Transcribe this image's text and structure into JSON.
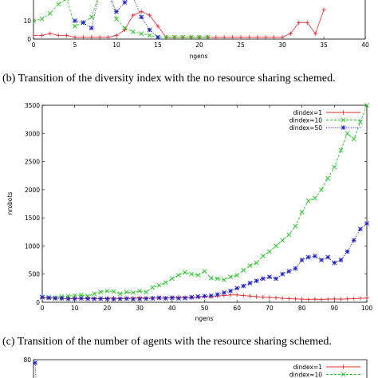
{
  "chart_data": [
    {
      "type": "line",
      "xlabel": "ngens",
      "ylabel": "",
      "xlim": [
        0,
        40
      ],
      "ylim": [
        0,
        30
      ],
      "x_ticks": [
        "0",
        "5",
        "10",
        "15",
        "20",
        "25",
        "30",
        "35",
        "40"
      ],
      "y_ticks": [
        "0",
        "10"
      ],
      "series": [
        {
          "name": "",
          "color": "#e03030",
          "marker": "plus",
          "x": [
            0,
            1,
            2,
            3,
            4,
            5,
            6,
            7,
            8,
            9,
            10,
            11,
            12,
            13,
            14,
            15,
            16,
            17,
            18,
            19,
            20,
            21,
            22,
            23,
            24,
            25,
            26,
            27,
            28,
            29,
            30,
            31,
            32,
            33,
            34,
            35
          ],
          "y": [
            2,
            2,
            3,
            2,
            2,
            1,
            1,
            1,
            1,
            1,
            2,
            5,
            13,
            15,
            13,
            7,
            1,
            1,
            1,
            1,
            1,
            1,
            1,
            1,
            1,
            1,
            1,
            1,
            1,
            1,
            1,
            3,
            9,
            9,
            3,
            16
          ]
        },
        {
          "name": "",
          "color": "#22c322",
          "marker": "x",
          "x": [
            0,
            1,
            2,
            3,
            4,
            5,
            6,
            7,
            8,
            9,
            10,
            11,
            12,
            13,
            14,
            15,
            16,
            17,
            18,
            19,
            20,
            21
          ],
          "y": [
            10,
            11,
            14,
            19,
            22,
            7,
            9,
            12,
            26,
            30,
            11,
            6,
            4,
            3,
            2,
            1,
            1,
            1,
            1,
            1,
            1,
            1
          ]
        },
        {
          "name": "",
          "color": "#1f1fc0",
          "marker": "star",
          "x": [
            5,
            6,
            7,
            8,
            9,
            10,
            11,
            12,
            13,
            14,
            15
          ],
          "y": [
            10,
            9,
            6,
            26,
            24,
            15,
            20,
            23,
            12,
            5,
            1
          ]
        }
      ]
    },
    {
      "type": "line",
      "xlabel": "ngens",
      "ylabel": "nrobots",
      "xlim": [
        0,
        100
      ],
      "ylim": [
        0,
        3500
      ],
      "x_ticks": [
        "0",
        "10",
        "20",
        "30",
        "40",
        "50",
        "60",
        "70",
        "80",
        "90",
        "100"
      ],
      "y_ticks": [
        "0",
        "500",
        "1000",
        "1500",
        "2000",
        "2500",
        "3000",
        "3500"
      ],
      "legend": "top-right",
      "grid": false,
      "x": [
        0,
        2,
        4,
        6,
        8,
        10,
        12,
        14,
        16,
        18,
        20,
        22,
        24,
        26,
        28,
        30,
        32,
        34,
        36,
        38,
        40,
        42,
        44,
        46,
        48,
        50,
        52,
        54,
        56,
        58,
        60,
        62,
        64,
        66,
        68,
        70,
        72,
        74,
        76,
        78,
        80,
        82,
        84,
        86,
        88,
        90,
        92,
        94,
        96,
        98,
        100
      ],
      "series": [
        {
          "name": "dindex=1",
          "color": "#e03030",
          "marker": "plus",
          "y": [
            80,
            70,
            75,
            65,
            60,
            70,
            65,
            75,
            70,
            60,
            70,
            75,
            65,
            70,
            75,
            80,
            70,
            75,
            70,
            75,
            80,
            90,
            85,
            80,
            90,
            100,
            95,
            110,
            120,
            130,
            130,
            120,
            110,
            100,
            90,
            85,
            80,
            70,
            65,
            60,
            55,
            50,
            55,
            50,
            55,
            60,
            55,
            60,
            65,
            70,
            75
          ]
        },
        {
          "name": "dindex=10",
          "color": "#22c322",
          "marker": "x",
          "y": [
            90,
            85,
            80,
            100,
            110,
            120,
            130,
            110,
            150,
            180,
            200,
            190,
            150,
            180,
            170,
            200,
            180,
            260,
            300,
            350,
            420,
            480,
            530,
            500,
            480,
            550,
            430,
            420,
            400,
            450,
            480,
            570,
            650,
            700,
            820,
            900,
            1000,
            1100,
            1200,
            1350,
            1600,
            1800,
            1850,
            2000,
            2200,
            2400,
            2700,
            3000,
            2900,
            3200,
            3500
          ]
        },
        {
          "name": "dindex=50",
          "color": "#1f1fc0",
          "marker": "star",
          "y": [
            90,
            80,
            70,
            70,
            60,
            60,
            70,
            60,
            60,
            65,
            60,
            55,
            60,
            65,
            55,
            60,
            65,
            70,
            80,
            70,
            80,
            70,
            75,
            90,
            100,
            110,
            115,
            140,
            170,
            200,
            250,
            290,
            340,
            380,
            420,
            450,
            420,
            500,
            550,
            600,
            750,
            800,
            820,
            750,
            800,
            700,
            750,
            900,
            1100,
            1300,
            1400
          ]
        }
      ]
    },
    {
      "type": "line",
      "xlabel": "",
      "ylabel": "",
      "ylim": [
        0,
        80
      ],
      "y_ticks": [
        "80"
      ],
      "legend": "top-right",
      "series": [
        {
          "name": "dindex=1",
          "color": "#e03030",
          "marker": "plus",
          "x": [],
          "y": []
        },
        {
          "name": "dindex=10",
          "color": "#22c322",
          "marker": "x",
          "x": [],
          "y": []
        }
      ]
    }
  ],
  "captions": [
    "(b) Transition of the diversity index with the no resource sharing schemed.",
    "(c) Transition of the number of agents with the resource sharing schemed."
  ]
}
